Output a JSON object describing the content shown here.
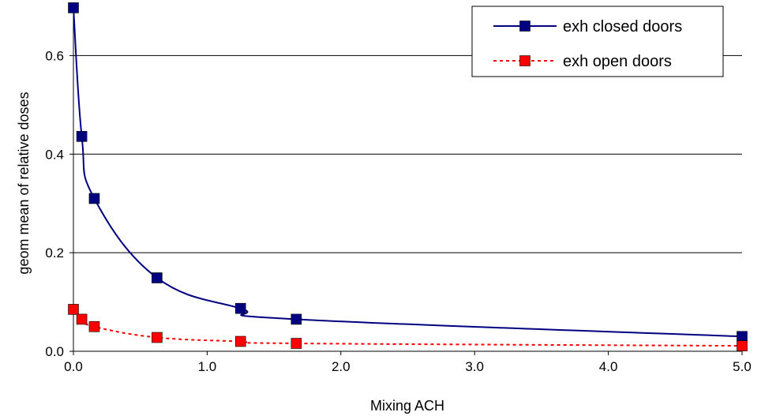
{
  "chart_data": {
    "type": "line",
    "title": "",
    "xlabel": "Mixing ACH",
    "ylabel": "geom mean of relative doses",
    "xlim": [
      0,
      5
    ],
    "ylim": [
      0,
      0.7
    ],
    "x_ticks": [
      0,
      1,
      2,
      3,
      4,
      5
    ],
    "x_tick_labels": [
      "0.0",
      "1.0",
      "2.0",
      "3.0",
      "4.0",
      "5.0"
    ],
    "y_ticks": [
      0,
      0.2,
      0.4,
      0.6
    ],
    "y_tick_labels": [
      "0.0",
      "0.2",
      "0.4",
      "0.6"
    ],
    "grid": "horizontal",
    "legend_position": "top-right",
    "series": [
      {
        "name": "exh closed doors",
        "color": "#000080",
        "line_style": "solid",
        "marker": "square",
        "x": [
          0,
          0.0625,
          0.15625,
          0.625,
          1.25,
          1.66667,
          5.0
        ],
        "y": [
          0.697,
          0.436,
          0.31,
          0.149,
          0.087,
          0.065,
          0.03
        ]
      },
      {
        "name": "exh open doors",
        "color": "#ff0000",
        "line_style": "dotted",
        "marker": "square",
        "x": [
          0,
          0.0625,
          0.15625,
          0.625,
          1.25,
          1.66667,
          5.0
        ],
        "y": [
          0.085,
          0.065,
          0.05,
          0.028,
          0.02,
          0.016,
          0.011
        ]
      }
    ]
  }
}
